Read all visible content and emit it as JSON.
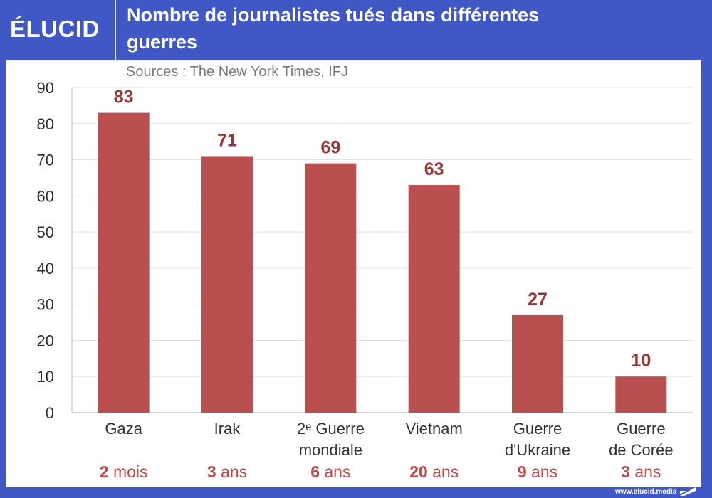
{
  "header": {
    "logo": "ÉLUCID",
    "title_line1": "Nombre de journalistes tués dans différentes",
    "title_line2": "guerres"
  },
  "source": "Sources : The New York Times, IFJ",
  "footer": {
    "url": "www.elucid.media"
  },
  "colors": {
    "brand_blue": "#3f58c6",
    "bar": "#b94f4f",
    "value_label": "#9a3535",
    "duration_label": "#c04848",
    "category_label": "#333333",
    "axis_text": "#2b2b2b",
    "grid": "#e3e3e3"
  },
  "chart_data": {
    "type": "bar",
    "title": "Nombre de journalistes tués dans différentes guerres",
    "subtitle": "Sources : The New York Times, IFJ",
    "xlabel": "",
    "ylabel": "",
    "ylim": [
      0,
      90
    ],
    "yticks": [
      0,
      10,
      20,
      30,
      40,
      50,
      60,
      70,
      80,
      90
    ],
    "grid": true,
    "legend": "none",
    "categories": [
      [
        "Gaza"
      ],
      [
        "Irak"
      ],
      [
        "2ᵉ Guerre",
        "mondiale"
      ],
      [
        "Vietnam"
      ],
      [
        "Guerre",
        "d'Ukraine"
      ],
      [
        "Guerre",
        "de Corée"
      ]
    ],
    "values": [
      83,
      71,
      69,
      63,
      27,
      10
    ],
    "durations": [
      {
        "number": "2",
        "unit": " mois"
      },
      {
        "number": "3",
        "unit": " ans"
      },
      {
        "number": "6",
        "unit": " ans"
      },
      {
        "number": "20",
        "unit": " ans"
      },
      {
        "number": "9",
        "unit": " ans"
      },
      {
        "number": "3",
        "unit": " ans"
      }
    ]
  }
}
